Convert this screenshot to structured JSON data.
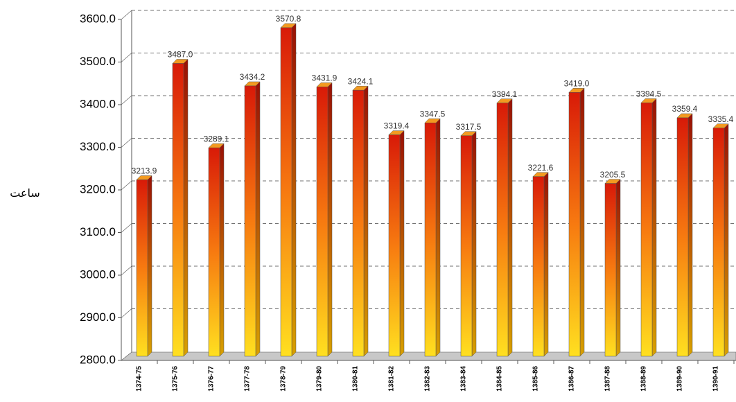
{
  "chart_data": {
    "type": "bar",
    "y_label": "ساعت",
    "categories": [
      "1374-75",
      "1375-76",
      "1376-77",
      "1377-78",
      "1378-79",
      "1379-80",
      "1380-81",
      "1381-82",
      "1382-83",
      "1383-84",
      "1384-85",
      "1385-86",
      "1386-87",
      "1387-88",
      "1388-89",
      "1389-90",
      "1390-91"
    ],
    "values": [
      3213.9,
      3487.0,
      3289.1,
      3434.2,
      3570.8,
      3431.9,
      3424.1,
      3319.4,
      3347.5,
      3317.5,
      3394.1,
      3221.6,
      3419.0,
      3205.5,
      3394.5,
      3359.4,
      3335.4
    ],
    "value_labels": [
      "3213.9",
      "3487.0",
      "3289.1",
      "3434.2",
      "3570.8",
      "3431.9",
      "3424.1",
      "3319.4",
      "3347.5",
      "3317.5",
      "3394.1",
      "3221.6",
      "3419.0",
      "3205.5",
      "3394.5",
      "3359.4",
      "3335.4"
    ],
    "ylim": [
      2800,
      3600
    ],
    "yticks": [
      {
        "value": 2800,
        "label": "2800.0"
      },
      {
        "value": 2900,
        "label": "2900.0"
      },
      {
        "value": 3000,
        "label": "3000.0"
      },
      {
        "value": 3100,
        "label": "3100.0"
      },
      {
        "value": 3200,
        "label": "3200.0"
      },
      {
        "value": 3300,
        "label": "3300.0"
      },
      {
        "value": 3400,
        "label": "3400.0"
      },
      {
        "value": 3500,
        "label": "3500.0"
      },
      {
        "value": 3600,
        "label": "3600.0"
      }
    ],
    "grid": true
  }
}
